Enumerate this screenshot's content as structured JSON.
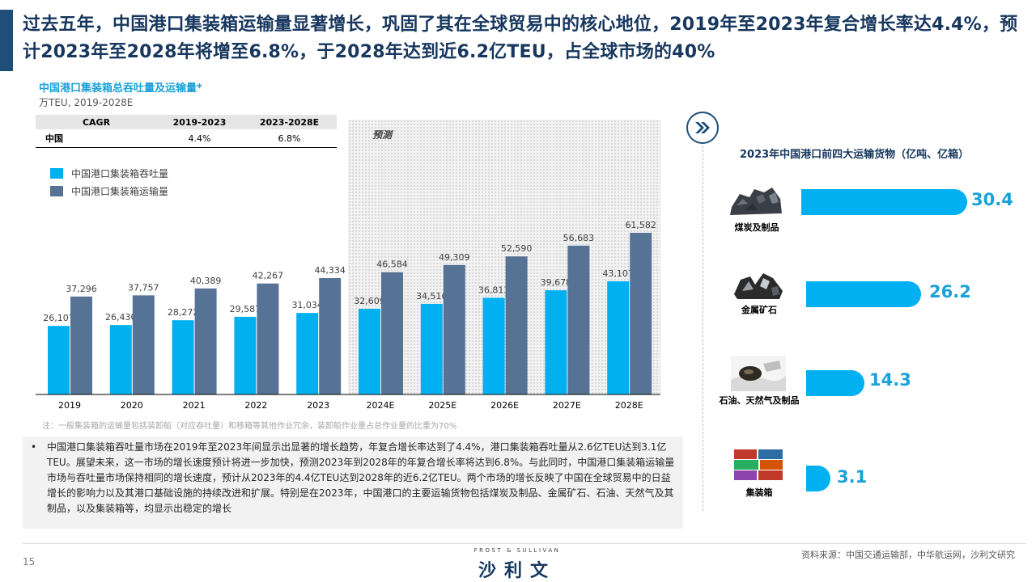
{
  "headline": "过去五年，中国港口集装箱运输量显著增长，巩固了其在全球贸易中的核心地位，2019年至2023年复合增长率达4.4%，预计2023年至2028年将增至6.8%，于2028年达到近6.2亿TEU，占全球市场的40%",
  "left_chart": {
    "title": "中国港口集装箱总吞吐量及运输量*",
    "unit": "万TEU, 2019-2028E",
    "cagr_table": {
      "headers": [
        "CAGR",
        "2019-2023",
        "2023-2028E"
      ],
      "row": [
        "中国",
        "4.4%",
        "6.8%"
      ]
    },
    "forecast_label": "预测",
    "note": "注：一般集装箱的运输量包括装卸船（对应吞吐量）和移箱等其他作业冗余，装卸船作业量占总作业量的比重为70%"
  },
  "chart_data": [
    {
      "type": "bar",
      "title": "中国港口集装箱总吞吐量及运输量*",
      "subtitle": "万TEU, 2019-2028E",
      "categories": [
        "2019",
        "2020",
        "2021",
        "2022",
        "2023",
        "2024E",
        "2025E",
        "2026E",
        "2027E",
        "2028E"
      ],
      "series": [
        {
          "name": "中国港口集装箱吞吐量",
          "color": "#00b0f0",
          "values": [
            26107,
            26430,
            28272,
            29587,
            31034,
            32609,
            34516,
            36813,
            39678,
            43107
          ]
        },
        {
          "name": "中国港口集装箱运输量",
          "color": "#567395",
          "values": [
            37296,
            37757,
            40389,
            42267,
            44334,
            46584,
            49309,
            52590,
            56683,
            61582
          ]
        }
      ],
      "value_labels": [
        [
          "26,107",
          "26,430",
          "28,272",
          "29,587",
          "31,034",
          "32,609",
          "34,516",
          "36,813",
          "39,678",
          "43,107"
        ],
        [
          "37,296",
          "37,757",
          "40,389",
          "42,267",
          "44,334",
          "46,584",
          "49,309",
          "52,590",
          "56,683",
          "61,582"
        ]
      ],
      "forecast_categories": [
        "2024E",
        "2025E",
        "2026E",
        "2027E",
        "2028E"
      ],
      "legend": "top-left",
      "ylim": [
        0,
        65000
      ],
      "grid": false
    },
    {
      "type": "bar",
      "orientation": "horizontal",
      "title": "2023年中国港口前四大运输货物（亿吨、亿箱）",
      "categories": [
        "煤炭及制品",
        "金属矿石",
        "石油、天然气及制品",
        "集装箱"
      ],
      "values": [
        30.4,
        26.2,
        14.3,
        3.1
      ],
      "color": "#00b0f0"
    }
  ],
  "summary": {
    "bullet": "•",
    "text": "中国港口集装箱吞吐量市场在2019年至2023年间显示出显著的增长趋势，年复合增长率达到了4.4%，港口集装箱吞吐量从2.6亿TEU达到3.1亿TEU。展望未来，这一市场的增长速度预计将进一步加快，预测2023年到2028年的年复合增长率将达到6.8%。与此同时，中国港口集装箱运输量市场与吞吐量市场保持相同的增长速度，预计从2023年的4.4亿TEU达到2028年的近6.2亿TEU。两个市场的增长反映了中国在全球贸易中的日益增长的影响力以及其港口基础设施的持续改进和扩展。特别是在2023年，中国港口的主要运输货物包括煤炭及制品、金属矿石、石油、天然气及其制品，以及集装箱等，均显示出稳定的增长"
  },
  "right_panel": {
    "title": "2023年中国港口前四大运输货物（亿吨、亿箱）",
    "items": [
      {
        "label": "煤炭及制品",
        "value": "30.4",
        "icon": "coal-photo"
      },
      {
        "label": "金属矿石",
        "value": "26.2",
        "icon": "ore-photo"
      },
      {
        "label": "石油、天然气及制品",
        "value": "14.3",
        "icon": "oil-gas-photo"
      },
      {
        "label": "集装箱",
        "value": "3.1",
        "icon": "container-photo"
      }
    ]
  },
  "footer": {
    "page_number": "15",
    "logo_top": "FROST & SULLIVAN",
    "logo_main": "沙利文",
    "source": "资料来源：中国交通运输部，中华航运网，沙利文研究"
  },
  "colors": {
    "headline": "#17375e",
    "accent": "#1f4e79",
    "throughput_bar": "#00b0f0",
    "transport_bar": "#567395",
    "right_bar": "#00b0f0"
  }
}
